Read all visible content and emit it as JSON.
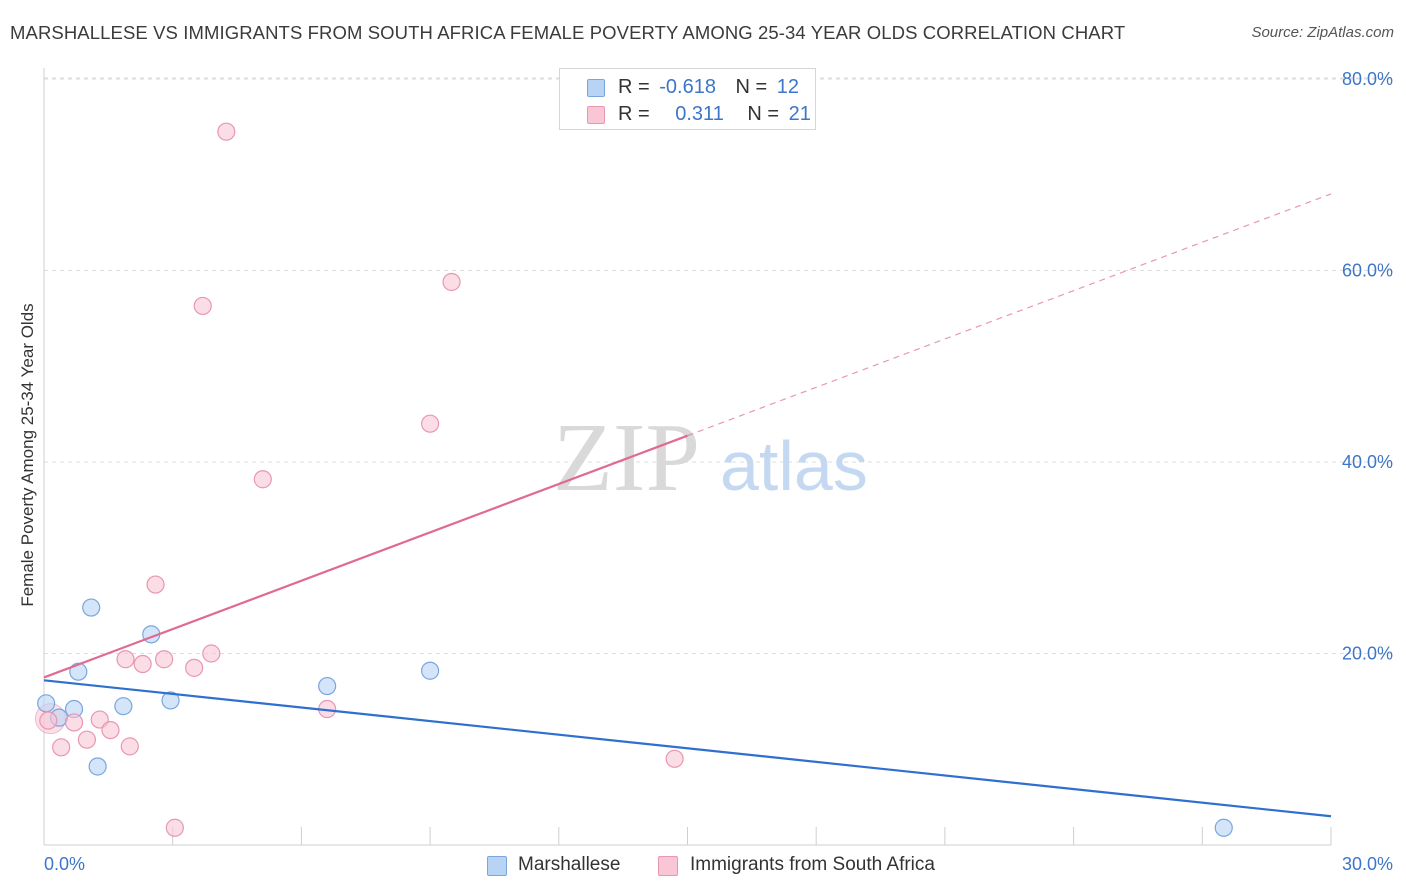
{
  "header": {
    "title": "MARSHALLESE VS IMMIGRANTS FROM SOUTH AFRICA FEMALE POVERTY AMONG 25-34 YEAR OLDS CORRELATION CHART",
    "source": "Source: ZipAtlas.com"
  },
  "watermark": {
    "zip": "ZIP",
    "atlas": "atlas"
  },
  "legend_top": {
    "rows": [
      {
        "r_label": "R =",
        "r_value": "-0.618",
        "n_label": "N =",
        "n_value": "12"
      },
      {
        "r_label": "R =",
        "r_value": "0.311",
        "n_label": "N =",
        "n_value": "21"
      }
    ]
  },
  "legend_bottom": {
    "series_a": "Marshallese",
    "series_b": "Immigrants from South Africa"
  },
  "colors": {
    "blue_fill": "#b8d4f5",
    "blue_stroke": "#7aa6dd",
    "blue_line": "#2f6fcf",
    "pink_fill": "#f9c6d6",
    "pink_stroke": "#e996b2",
    "pink_line": "#e06b90",
    "tick_label": "#3d76c9",
    "grid": "#dddddd"
  },
  "chart_data": {
    "type": "scatter",
    "title": "MARSHALLESE VS IMMIGRANTS FROM SOUTH AFRICA FEMALE POVERTY AMONG 25-34 YEAR OLDS CORRELATION CHART",
    "xlabel": "",
    "ylabel": "Female Poverty Among 25-34 Year Olds",
    "xlim": [
      0,
      30
    ],
    "ylim": [
      0,
      80
    ],
    "x_tick_labels": [
      "0.0%",
      "30.0%"
    ],
    "y_ticks": [
      20,
      40,
      60,
      80
    ],
    "y_tick_labels": [
      "20.0%",
      "40.0%",
      "60.0%",
      "80.0%"
    ],
    "grid": true,
    "legend_position": "top-center",
    "series": [
      {
        "name": "Marshallese",
        "color": "blue",
        "points": [
          [
            0.05,
            14.8
          ],
          [
            0.35,
            13.3
          ],
          [
            0.7,
            14.2
          ],
          [
            0.8,
            18.1
          ],
          [
            1.1,
            24.8
          ],
          [
            1.25,
            8.2
          ],
          [
            1.85,
            14.5
          ],
          [
            2.5,
            22.0
          ],
          [
            2.95,
            15.1
          ],
          [
            6.6,
            16.6
          ],
          [
            9.0,
            18.2
          ],
          [
            27.5,
            1.8
          ]
        ],
        "trend": {
          "x0": 0,
          "y0": 17.2,
          "x1": 30,
          "y1": 3.0
        }
      },
      {
        "name": "Immigrants from South Africa",
        "color": "pink",
        "points": [
          [
            0.1,
            13.0
          ],
          [
            0.4,
            10.2
          ],
          [
            0.7,
            12.8
          ],
          [
            1.0,
            11.0
          ],
          [
            1.3,
            13.1
          ],
          [
            1.55,
            12.0
          ],
          [
            1.9,
            19.4
          ],
          [
            2.0,
            10.3
          ],
          [
            2.3,
            18.9
          ],
          [
            2.6,
            27.2
          ],
          [
            2.8,
            19.4
          ],
          [
            3.05,
            1.8
          ],
          [
            3.5,
            18.5
          ],
          [
            3.7,
            56.3
          ],
          [
            3.9,
            20.0
          ],
          [
            4.25,
            74.5
          ],
          [
            5.1,
            38.2
          ],
          [
            6.6,
            14.2
          ],
          [
            9.0,
            44.0
          ],
          [
            9.5,
            58.8
          ],
          [
            14.7,
            9.0
          ]
        ],
        "trend": {
          "x0": 0,
          "y0": 17.5,
          "x1": 30,
          "y1": 68.0,
          "solid_until_x": 15
        }
      }
    ]
  }
}
